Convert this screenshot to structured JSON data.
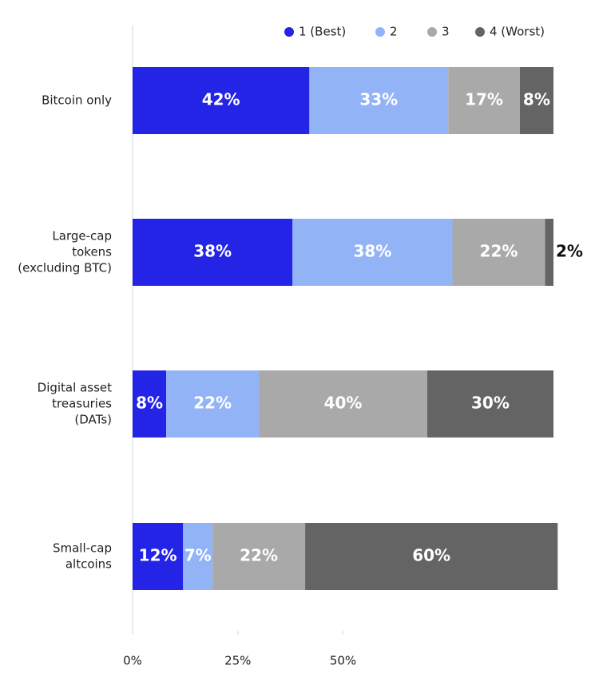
{
  "chart_data": {
    "type": "stacked-bar-horizontal",
    "categories": [
      [
        "Bitcoin only"
      ],
      [
        "Large-cap",
        "tokens",
        "(excluding BTC)"
      ],
      [
        "Digital asset",
        "treasuries",
        "(DATs)"
      ],
      [
        "Small-cap",
        "altcoins"
      ]
    ],
    "series": [
      {
        "name": "1 (Best)",
        "color": "#2424e6",
        "values": [
          42,
          38,
          8,
          12
        ],
        "value_labels": [
          "42%",
          "38%",
          "8%",
          "12%"
        ]
      },
      {
        "name": "2",
        "color": "#93b3f7",
        "values": [
          33,
          38,
          22,
          7
        ],
        "value_labels": [
          "33%",
          "38%",
          "22%",
          "7%"
        ]
      },
      {
        "name": "3",
        "color": "#a9a9a9",
        "values": [
          17,
          22,
          40,
          22
        ],
        "value_labels": [
          "17%",
          "22%",
          "40%",
          "22%"
        ]
      },
      {
        "name": "4 (Worst)",
        "color": "#646464",
        "values": [
          8,
          2,
          30,
          60
        ],
        "value_labels": [
          "8%",
          "2%",
          "30%",
          "60%"
        ]
      }
    ],
    "xlim": [
      0,
      100
    ],
    "xticks": [
      {
        "value": 0,
        "label": "0%"
      },
      {
        "value": 25,
        "label": "25%"
      },
      {
        "value": 50,
        "label": "50%"
      }
    ]
  }
}
